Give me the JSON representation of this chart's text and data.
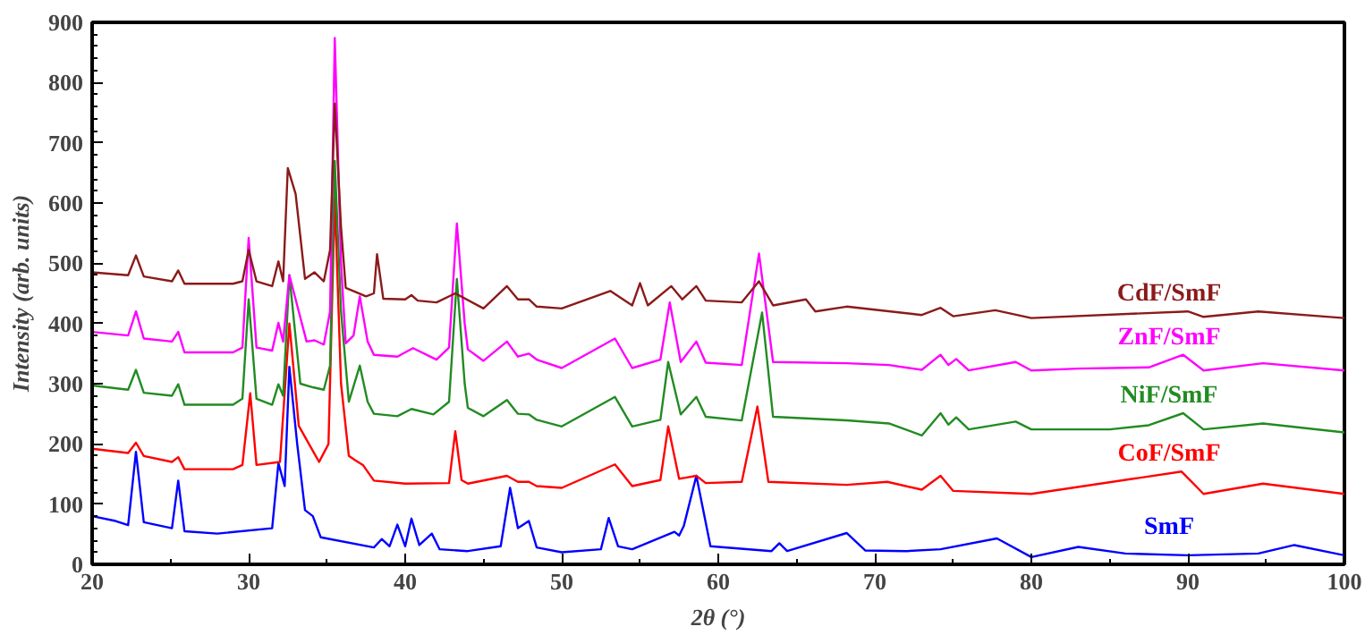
{
  "chart_data": {
    "type": "line",
    "xlabel": "2θ (°)",
    "ylabel": "Intensity (arb. units)",
    "xlim": [
      20,
      100
    ],
    "ylim": [
      0,
      900
    ],
    "xticks": [
      20,
      30,
      40,
      50,
      60,
      70,
      80,
      90,
      100
    ],
    "yticks": [
      0,
      100,
      200,
      300,
      400,
      500,
      600,
      700,
      800,
      900
    ],
    "grid": false,
    "legend": false,
    "marker": "none",
    "line_style": "solid",
    "series": [
      {
        "name": "CdF/SmF",
        "color": "#8b1a1a",
        "x": [
          20,
          22.3,
          22.8,
          23.3,
          25.1,
          25.5,
          25.9,
          29,
          29.6,
          30.0,
          30.5,
          31.5,
          31.9,
          32.2,
          32.5,
          33.0,
          33.6,
          34.2,
          34.8,
          35.2,
          35.5,
          35.9,
          36.2,
          37.5,
          38.0,
          38.2,
          38.6,
          40.0,
          40.4,
          40.8,
          42,
          43.2,
          45,
          46.5,
          47.2,
          47.9,
          48.4,
          50,
          53.1,
          54.5,
          55.0,
          55.5,
          57.0,
          57.7,
          58.6,
          59.2,
          61.5,
          62.6,
          63.5,
          65.6,
          66.2,
          68.2,
          71,
          73,
          74.2,
          75,
          77.7,
          80,
          90,
          91,
          94.5,
          100
        ],
        "values": [
          485,
          480,
          513,
          478,
          470,
          488,
          466,
          466,
          470,
          522,
          470,
          462,
          503,
          470,
          658,
          615,
          474,
          485,
          470,
          522,
          765,
          560,
          459,
          445,
          450,
          515,
          441,
          440,
          447,
          438,
          435,
          450,
          425,
          462,
          440,
          440,
          428,
          425,
          454,
          430,
          467,
          430,
          462,
          440,
          462,
          438,
          435,
          470,
          430,
          440,
          420,
          428,
          420,
          414,
          426,
          412,
          422,
          409,
          420,
          411,
          420,
          409
        ]
      },
      {
        "name": "ZnF/SmF",
        "color": "#ff00ff",
        "x": [
          20,
          22.3,
          22.8,
          23.3,
          25.1,
          25.5,
          25.9,
          29,
          29.6,
          30.0,
          30.5,
          31.5,
          31.9,
          32.2,
          32.6,
          33.2,
          33.7,
          34.2,
          34.8,
          35.2,
          35.5,
          35.9,
          36.2,
          36.7,
          37.1,
          37.6,
          38,
          39.5,
          40.5,
          42,
          42.8,
          43.3,
          43.8,
          44,
          45,
          46.5,
          47.2,
          47.9,
          48.4,
          50,
          53.4,
          54.5,
          56.3,
          56.9,
          57.6,
          58.6,
          59.2,
          61.5,
          62.6,
          63.5,
          68.2,
          70.9,
          73,
          74.2,
          74.7,
          75.2,
          76,
          79,
          80,
          83,
          87.5,
          89.7,
          91,
          94.8,
          100
        ],
        "values": [
          386,
          380,
          420,
          375,
          370,
          386,
          352,
          352,
          360,
          542,
          360,
          355,
          401,
          370,
          480,
          420,
          370,
          372,
          365,
          420,
          874,
          500,
          367,
          380,
          445,
          370,
          348,
          345,
          359,
          340,
          360,
          566,
          400,
          357,
          338,
          370,
          345,
          350,
          340,
          326,
          375,
          326,
          340,
          435,
          336,
          370,
          335,
          331,
          516,
          336,
          334,
          331,
          323,
          348,
          331,
          341,
          322,
          336,
          322,
          325,
          327,
          348,
          322,
          334,
          322
        ]
      },
      {
        "name": "NiF/SmF",
        "color": "#228b22",
        "x": [
          20,
          22.3,
          22.8,
          23.3,
          25.1,
          25.5,
          25.9,
          29,
          29.6,
          30.0,
          30.5,
          31.5,
          31.9,
          32.2,
          32.6,
          33.3,
          34.1,
          34.8,
          35.2,
          35.5,
          35.9,
          36.4,
          37.1,
          37.6,
          38,
          39.5,
          40.4,
          41.8,
          42.8,
          43.3,
          43.8,
          44,
          45,
          46.5,
          47.2,
          47.9,
          48.4,
          50,
          53.4,
          54.5,
          56.3,
          56.8,
          57.6,
          58.6,
          59.2,
          61.5,
          62.8,
          63.5,
          68.2,
          70.9,
          73,
          74.2,
          74.7,
          75.2,
          76,
          79,
          80,
          85,
          87.5,
          89.7,
          91,
          94.8,
          100
        ],
        "values": [
          297,
          290,
          323,
          285,
          280,
          299,
          265,
          265,
          275,
          440,
          275,
          265,
          299,
          280,
          480,
          300,
          294,
          290,
          330,
          670,
          420,
          270,
          330,
          270,
          250,
          246,
          258,
          249,
          270,
          474,
          300,
          260,
          246,
          273,
          250,
          249,
          240,
          229,
          278,
          229,
          240,
          336,
          249,
          278,
          245,
          239,
          418,
          245,
          239,
          234,
          214,
          251,
          232,
          244,
          224,
          237,
          224,
          224,
          231,
          251,
          224,
          234,
          219
        ]
      },
      {
        "name": "CoF/SmF",
        "color": "#ff0000",
        "x": [
          20,
          22.3,
          22.8,
          23.3,
          25.1,
          25.5,
          25.9,
          29,
          29.6,
          30.1,
          30.5,
          32.0,
          32.6,
          33.2,
          34.5,
          35.1,
          35.5,
          35.9,
          36.4,
          36.8,
          37.3,
          38,
          40,
          42.8,
          43.2,
          43.6,
          44,
          46.5,
          47.2,
          47.9,
          48.4,
          50,
          53.4,
          54.5,
          56.3,
          56.8,
          57.5,
          58.6,
          59.2,
          61.5,
          62.5,
          63.2,
          68.2,
          70.8,
          73,
          74.2,
          75,
          80,
          89.6,
          91,
          94.8,
          100
        ],
        "values": [
          192,
          185,
          202,
          180,
          170,
          178,
          158,
          158,
          165,
          284,
          165,
          170,
          400,
          230,
          170,
          200,
          610,
          300,
          180,
          173,
          165,
          139,
          134,
          135,
          221,
          140,
          134,
          147,
          137,
          137,
          130,
          127,
          166,
          130,
          140,
          229,
          142,
          147,
          135,
          137,
          262,
          137,
          132,
          137,
          124,
          147,
          122,
          117,
          154,
          117,
          134,
          117
        ]
      },
      {
        "name": "SmF",
        "color": "#0000ff",
        "x": [
          20,
          21.5,
          22.3,
          22.8,
          23.3,
          25.1,
          25.5,
          25.9,
          28,
          31.5,
          31.9,
          32.3,
          32.6,
          33.1,
          33.6,
          34.1,
          34.6,
          38,
          38.5,
          39,
          39.5,
          40,
          40.4,
          40.9,
          41.7,
          42.2,
          44,
          46.1,
          46.7,
          47.2,
          47.9,
          48.4,
          50,
          52.5,
          53.0,
          53.6,
          54.5,
          57.2,
          57.5,
          57.8,
          58.6,
          59.5,
          63.4,
          63.9,
          64.4,
          68.2,
          69.4,
          72,
          74.2,
          77.8,
          80,
          83.0,
          86,
          90,
          94.5,
          96.8,
          100
        ],
        "values": [
          80,
          72,
          65,
          187,
          70,
          60,
          139,
          55,
          51,
          60,
          168,
          130,
          328,
          200,
          90,
          80,
          45,
          28,
          42,
          30,
          66,
          30,
          76,
          32,
          51,
          25,
          22,
          30,
          127,
          60,
          72,
          28,
          20,
          25,
          77,
          30,
          25,
          54,
          48,
          64,
          147,
          30,
          22,
          35,
          22,
          52,
          23,
          22,
          25,
          43,
          12,
          29,
          18,
          15,
          18,
          32,
          15
        ]
      }
    ]
  }
}
